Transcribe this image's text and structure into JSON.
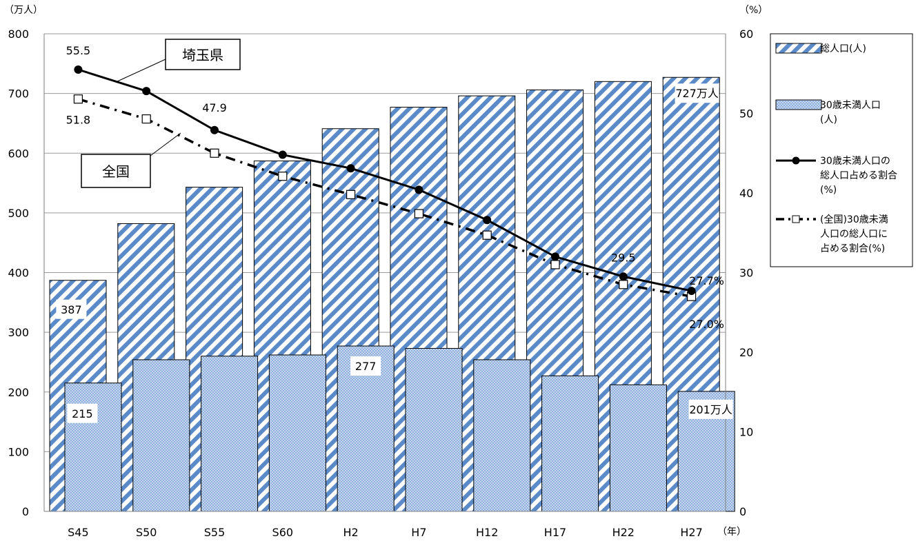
{
  "chart_data": {
    "type": "bar",
    "categories": [
      "S45",
      "S50",
      "S55",
      "S60",
      "H2",
      "H7",
      "H12",
      "H17",
      "H22",
      "H27"
    ],
    "left_axis": {
      "unit": "（万人）",
      "ylim": [
        0,
        800
      ],
      "ticks": [
        "0",
        "100",
        "200",
        "300",
        "400",
        "500",
        "600",
        "700",
        "800"
      ]
    },
    "right_axis": {
      "unit": "（%）",
      "ylim": [
        0,
        60
      ],
      "ticks": [
        "0",
        "10",
        "20",
        "30",
        "40",
        "50",
        "60"
      ]
    },
    "x_unit": "（年）",
    "series": [
      {
        "name": "総人口(人)",
        "kind": "bar",
        "axis": "left",
        "pattern": "diagonal-stripes",
        "color": "#5b8ac8",
        "values": [
          387,
          482,
          543,
          587,
          641,
          677,
          696,
          706,
          720,
          727
        ]
      },
      {
        "name": "30歳未満人口(人)",
        "kind": "bar",
        "axis": "left",
        "pattern": "dotted",
        "color": "#b8cde8",
        "values": [
          215,
          254,
          260,
          262,
          277,
          273,
          254,
          227,
          212,
          201
        ]
      },
      {
        "name": "30歳未満人口の総人口占める割合(%)",
        "kind": "line",
        "axis": "right",
        "style": "solid-circle",
        "color": "#000000",
        "values": [
          55.5,
          52.8,
          47.9,
          44.8,
          43.1,
          40.4,
          36.6,
          32.0,
          29.5,
          27.7
        ]
      },
      {
        "name": "(全国)30歳未満人口の総人口に占める割合(%)",
        "kind": "line",
        "axis": "right",
        "style": "dashdot-square",
        "color": "#000000",
        "values": [
          51.8,
          49.3,
          45.0,
          42.1,
          39.8,
          37.4,
          34.7,
          31.0,
          28.5,
          27.0
        ]
      }
    ],
    "data_labels": [
      {
        "text": "387",
        "series": 0,
        "index": 0
      },
      {
        "text": "215",
        "series": 1,
        "index": 0
      },
      {
        "text": "277",
        "series": 1,
        "index": 4
      },
      {
        "text": "727万人",
        "series": 0,
        "index": 9
      },
      {
        "text": "201万人",
        "series": 1,
        "index": 9
      },
      {
        "text": "55.5",
        "series": 2,
        "index": 0
      },
      {
        "text": "51.8",
        "series": 3,
        "index": 0
      },
      {
        "text": "47.9",
        "series": 2,
        "index": 2
      },
      {
        "text": "29.5",
        "series": 2,
        "index": 8
      },
      {
        "text": "27.7%",
        "series": 2,
        "index": 9
      },
      {
        "text": "27.0%",
        "series": 3,
        "index": 9
      }
    ],
    "callouts": [
      {
        "text": "埼玉県",
        "series": 2
      },
      {
        "text": "全国",
        "series": 3
      }
    ],
    "legend": {
      "placement": "right",
      "entries": [
        {
          "series": 0,
          "lines": [
            "総人口(人)"
          ]
        },
        {
          "series": 1,
          "lines": [
            "30歳未満人口",
            "(人)"
          ]
        },
        {
          "series": 2,
          "lines": [
            "30歳未満人口の",
            "総人口占める割合",
            "(%)"
          ]
        },
        {
          "series": 3,
          "lines": [
            "(全国)30歳未満",
            "人口の総人口に",
            "占める割合(%)"
          ]
        }
      ]
    },
    "grid": true
  }
}
